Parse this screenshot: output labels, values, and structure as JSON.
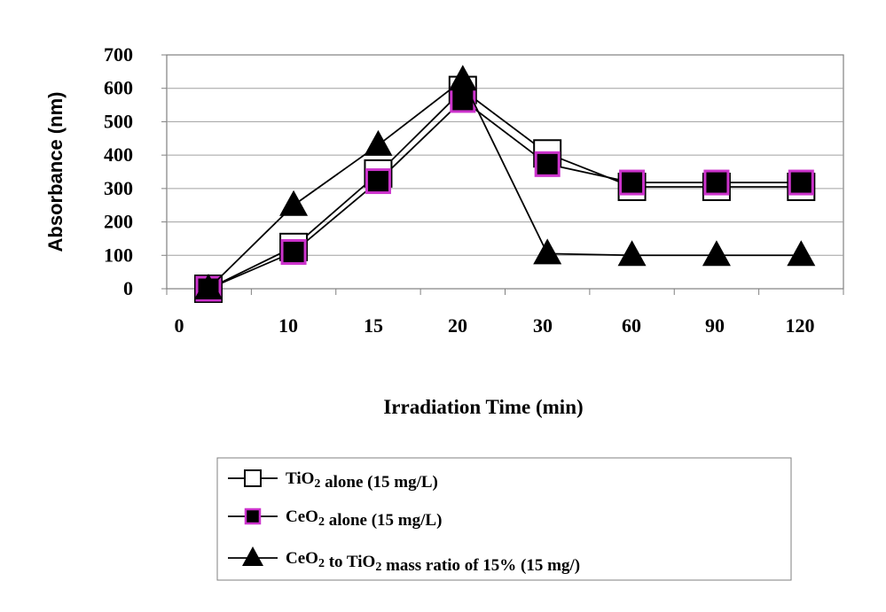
{
  "chart_data": {
    "type": "line",
    "xlabel": "Irradiation Time (min)",
    "ylabel": "Absorbance (nm)",
    "categories": [
      "0",
      "10",
      "15",
      "20",
      "30",
      "60",
      "90",
      "120"
    ],
    "ylim": [
      0,
      700
    ],
    "yticks": [
      "0",
      "100",
      "200",
      "300",
      "400",
      "500",
      "600",
      "700"
    ],
    "grid": "horizontal",
    "legend_position": "bottom-center",
    "series": [
      {
        "name_parts": [
          "TiO",
          "2",
          " alone (15 mg/L)"
        ],
        "marker": "open-square",
        "color": "#000000",
        "values": [
          0,
          125,
          345,
          595,
          405,
          305,
          305,
          305
        ]
      },
      {
        "name_parts": [
          "CeO",
          "2",
          " alone (15 mg/L)"
        ],
        "marker": "filled-square-magenta-border",
        "color": "#000000",
        "accent": "#cc33cc",
        "values": [
          0,
          110,
          322,
          565,
          373,
          318,
          318,
          318
        ]
      },
      {
        "name_parts": [
          "CeO",
          "2",
          " to TiO",
          "2",
          " mass ratio of 15% (15 mg/)"
        ],
        "marker": "filled-triangle",
        "color": "#000000",
        "values": [
          0,
          250,
          430,
          625,
          105,
          100,
          100,
          100
        ]
      }
    ]
  }
}
